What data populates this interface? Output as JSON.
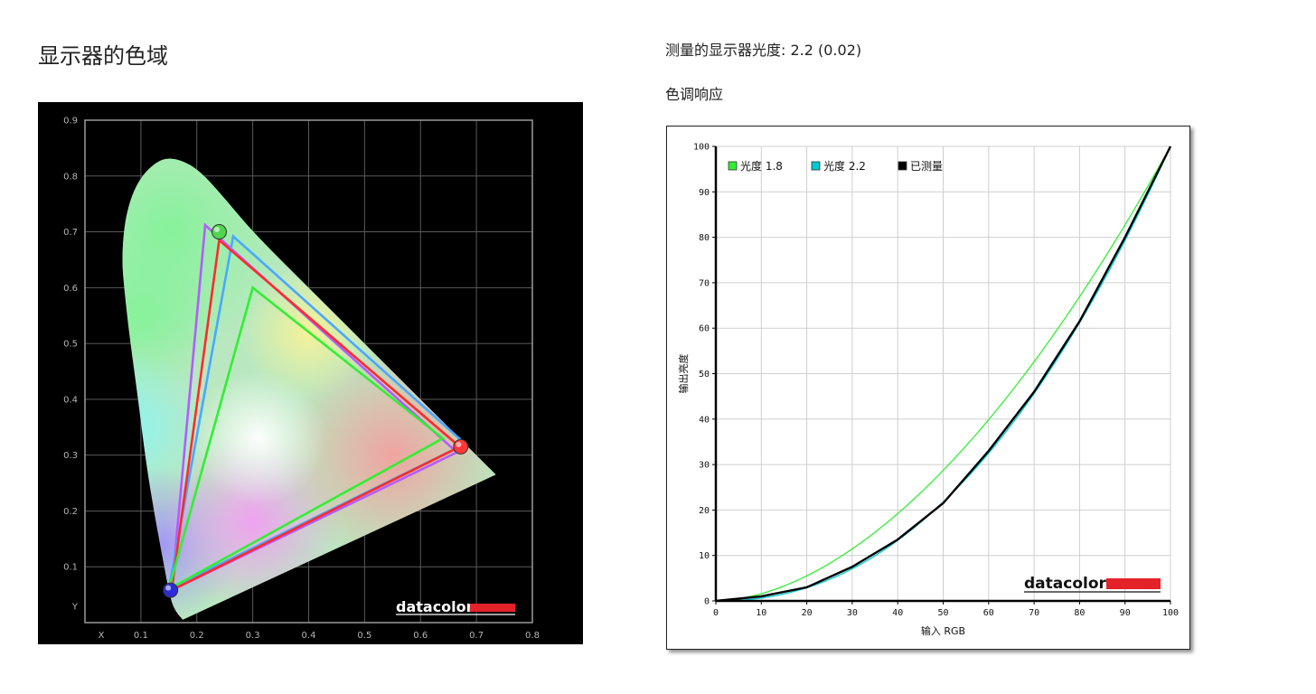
{
  "page": {
    "left_title": "显示器的色域",
    "gamma_line": "测量的显示器光度:  2.2 (0.02)",
    "tone_title": "色调响应"
  },
  "chart_data": [
    {
      "type": "scatter",
      "name": "gamut",
      "xlim": [
        0,
        0.8
      ],
      "ylim": [
        0,
        0.9
      ],
      "x_ticks": [
        "X",
        "0.1",
        "0.2",
        "0.3",
        "0.4",
        "0.5",
        "0.6",
        "0.7",
        "0.8"
      ],
      "y_ticks": [
        "Y",
        "0.1",
        "0.2",
        "0.3",
        "0.4",
        "0.5",
        "0.6",
        "0.7",
        "0.8",
        "0.9"
      ],
      "grid": true,
      "logo": "datacolor",
      "locus": [
        [
          0.175,
          0.005
        ],
        [
          0.16,
          0.02
        ],
        [
          0.15,
          0.055
        ],
        [
          0.14,
          0.11
        ],
        [
          0.125,
          0.19
        ],
        [
          0.11,
          0.28
        ],
        [
          0.095,
          0.4
        ],
        [
          0.08,
          0.51
        ],
        [
          0.07,
          0.6
        ],
        [
          0.066,
          0.65
        ],
        [
          0.07,
          0.71
        ],
        [
          0.08,
          0.755
        ],
        [
          0.095,
          0.79
        ],
        [
          0.115,
          0.815
        ],
        [
          0.14,
          0.832
        ],
        [
          0.17,
          0.83
        ],
        [
          0.205,
          0.81
        ],
        [
          0.25,
          0.76
        ],
        [
          0.3,
          0.7
        ],
        [
          0.4,
          0.6
        ],
        [
          0.5,
          0.5
        ],
        [
          0.6,
          0.4
        ],
        [
          0.7,
          0.3
        ],
        [
          0.735,
          0.265
        ]
      ],
      "series": [
        {
          "color": "#b45cff",
          "points": [
            [
              0.215,
              0.712
            ],
            [
              0.665,
              0.305
            ],
            [
              0.155,
              0.058
            ]
          ]
        },
        {
          "color": "#4aa8ff",
          "points": [
            [
              0.265,
              0.692
            ],
            [
              0.68,
              0.32
            ],
            [
              0.15,
              0.06
            ]
          ]
        },
        {
          "color": "#ff2b2b",
          "points": [
            [
              0.24,
              0.685
            ],
            [
              0.67,
              0.315
            ],
            [
              0.155,
              0.058
            ]
          ]
        },
        {
          "color": "#33ee33",
          "points": [
            [
              0.3,
              0.6
            ],
            [
              0.64,
              0.33
            ],
            [
              0.15,
              0.06
            ]
          ]
        }
      ],
      "markers": [
        {
          "x": 0.24,
          "y": 0.7,
          "color": "#4fd64f"
        },
        {
          "x": 0.672,
          "y": 0.315,
          "color": "#ff3838"
        },
        {
          "x": 0.153,
          "y": 0.058,
          "color": "#2a2ad8"
        }
      ]
    },
    {
      "type": "line",
      "name": "tone",
      "xlabel": "输入 RGB",
      "ylabel": "输出亮度",
      "xlim": [
        0,
        100
      ],
      "ylim": [
        0,
        100
      ],
      "x_ticks": [
        0,
        10,
        20,
        30,
        40,
        50,
        60,
        70,
        80,
        90,
        100
      ],
      "y_ticks": [
        0,
        10,
        20,
        30,
        40,
        50,
        60,
        70,
        80,
        90,
        100
      ],
      "grid": true,
      "logo": "datacolor",
      "series": [
        {
          "name": "光度 1.8",
          "color": "#33ee33",
          "gamma": 1.8
        },
        {
          "name": "光度 2.2",
          "color": "#00c8d2",
          "gamma": 2.2
        },
        {
          "name": "已测量",
          "color": "#000000",
          "x": [
            0,
            10,
            20,
            30,
            40,
            50,
            60,
            70,
            80,
            90,
            100
          ],
          "y": [
            0,
            1,
            3,
            7.5,
            13.5,
            21.5,
            33,
            46,
            61.5,
            80,
            100
          ]
        }
      ]
    }
  ]
}
